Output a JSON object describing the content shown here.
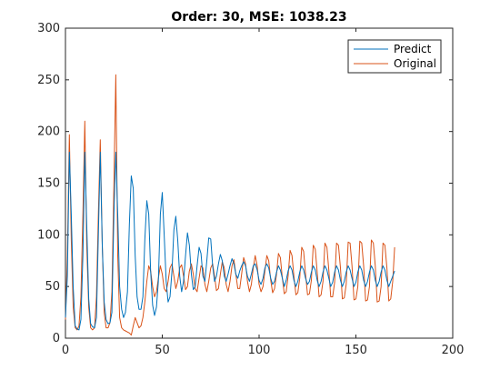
{
  "chart_data": {
    "type": "line",
    "title": "Order: 30, MSE: 1038.23",
    "xlabel": "",
    "ylabel": "",
    "xlim": [
      0,
      200
    ],
    "ylim": [
      0,
      300
    ],
    "xticks": [
      0,
      50,
      100,
      150,
      200
    ],
    "yticks": [
      0,
      50,
      100,
      150,
      200,
      250,
      300
    ],
    "grid": false,
    "legend_position": "top-right",
    "series": [
      {
        "name": "Predict",
        "color": "#0072BD",
        "x": [
          0,
          1,
          2,
          3,
          4,
          5,
          6,
          7,
          8,
          9,
          10,
          11,
          12,
          13,
          14,
          15,
          16,
          17,
          18,
          19,
          20,
          21,
          22,
          23,
          24,
          25,
          26,
          27,
          28,
          29,
          30,
          31,
          32,
          33,
          34,
          35,
          36,
          37,
          38,
          39,
          40,
          41,
          42,
          43,
          44,
          45,
          46,
          47,
          48,
          49,
          50,
          51,
          52,
          53,
          54,
          55,
          56,
          57,
          58,
          59,
          60,
          61,
          62,
          63,
          64,
          65,
          66,
          67,
          68,
          69,
          70,
          71,
          72,
          73,
          74,
          75,
          76,
          77,
          78,
          79,
          80,
          81,
          82,
          83,
          84,
          85,
          86,
          87,
          88,
          89,
          90,
          91,
          92,
          93,
          94,
          95,
          96,
          97,
          98,
          99,
          100,
          101,
          102,
          103,
          104,
          105,
          106,
          107,
          108,
          109,
          110,
          111,
          112,
          113,
          114,
          115,
          116,
          117,
          118,
          119,
          120,
          121,
          122,
          123,
          124,
          125,
          126,
          127,
          128,
          129,
          130,
          131,
          132,
          133,
          134,
          135,
          136,
          137,
          138,
          139,
          140,
          141,
          142,
          143,
          144,
          145,
          146,
          147,
          148,
          149,
          150,
          151,
          152,
          153,
          154,
          155,
          156,
          157,
          158,
          159,
          160,
          161,
          162,
          163,
          164,
          165,
          166,
          167,
          168,
          169,
          170
        ],
        "values": [
          20,
          60,
          180,
          120,
          50,
          12,
          9,
          8,
          18,
          80,
          180,
          110,
          38,
          14,
          11,
          10,
          20,
          100,
          180,
          90,
          35,
          18,
          14,
          15,
          25,
          120,
          180,
          120,
          50,
          28,
          20,
          25,
          45,
          110,
          157,
          145,
          80,
          40,
          28,
          28,
          40,
          95,
          133,
          120,
          65,
          32,
          22,
          30,
          55,
          120,
          141,
          100,
          55,
          35,
          40,
          65,
          105,
          118,
          95,
          60,
          45,
          55,
          80,
          102,
          90,
          62,
          47,
          50,
          70,
          88,
          82,
          60,
          55,
          75,
          97,
          96,
          70,
          55,
          60,
          72,
          81,
          75,
          60,
          55,
          62,
          70,
          77,
          72,
          62,
          58,
          65,
          70,
          74,
          70,
          60,
          55,
          62,
          70,
          72,
          66,
          56,
          52,
          58,
          68,
          72,
          68,
          58,
          52,
          55,
          64,
          70,
          66,
          58,
          50,
          56,
          65,
          70,
          66,
          56,
          50,
          55,
          64,
          70,
          66,
          58,
          52,
          55,
          64,
          70,
          66,
          56,
          50,
          55,
          64,
          70,
          66,
          58,
          50,
          54,
          64,
          70,
          66,
          56,
          50,
          55,
          64,
          70,
          66,
          58,
          50,
          54,
          64,
          70,
          66,
          56,
          50,
          55,
          64,
          70,
          66,
          56,
          50,
          55,
          64,
          70,
          66,
          56,
          50,
          55,
          60,
          65
        ]
      },
      {
        "name": "Original",
        "color": "#D95319",
        "x": [
          0,
          1,
          2,
          3,
          4,
          5,
          6,
          7,
          8,
          9,
          10,
          11,
          12,
          13,
          14,
          15,
          16,
          17,
          18,
          19,
          20,
          21,
          22,
          23,
          24,
          25,
          26,
          27,
          28,
          29,
          30,
          31,
          32,
          33,
          34,
          35,
          36,
          37,
          38,
          39,
          40,
          41,
          42,
          43,
          44,
          45,
          46,
          47,
          48,
          49,
          50,
          51,
          52,
          53,
          54,
          55,
          56,
          57,
          58,
          59,
          60,
          61,
          62,
          63,
          64,
          65,
          66,
          67,
          68,
          69,
          70,
          71,
          72,
          73,
          74,
          75,
          76,
          77,
          78,
          79,
          80,
          81,
          82,
          83,
          84,
          85,
          86,
          87,
          88,
          89,
          90,
          91,
          92,
          93,
          94,
          95,
          96,
          97,
          98,
          99,
          100,
          101,
          102,
          103,
          104,
          105,
          106,
          107,
          108,
          109,
          110,
          111,
          112,
          113,
          114,
          115,
          116,
          117,
          118,
          119,
          120,
          121,
          122,
          123,
          124,
          125,
          126,
          127,
          128,
          129,
          130,
          131,
          132,
          133,
          134,
          135,
          136,
          137,
          138,
          139,
          140,
          141,
          142,
          143,
          144,
          145,
          146,
          147,
          148,
          149,
          150,
          151,
          152,
          153,
          154,
          155,
          156,
          157,
          158,
          159,
          160,
          161,
          162,
          163,
          164,
          165,
          166,
          167,
          168,
          169,
          170
        ],
        "values": [
          18,
          80,
          197,
          95,
          30,
          10,
          8,
          12,
          40,
          120,
          210,
          90,
          30,
          10,
          8,
          10,
          40,
          120,
          192,
          90,
          25,
          10,
          10,
          15,
          45,
          150,
          255,
          80,
          20,
          10,
          8,
          7,
          6,
          5,
          3,
          12,
          20,
          15,
          10,
          12,
          20,
          35,
          55,
          70,
          65,
          50,
          40,
          45,
          58,
          70,
          62,
          48,
          45,
          55,
          68,
          72,
          60,
          48,
          55,
          68,
          71,
          60,
          47,
          50,
          65,
          72,
          62,
          48,
          45,
          58,
          70,
          68,
          52,
          45,
          55,
          68,
          72,
          60,
          46,
          48,
          62,
          74,
          68,
          52,
          45,
          55,
          70,
          76,
          62,
          48,
          48,
          62,
          78,
          72,
          55,
          45,
          52,
          68,
          80,
          70,
          52,
          45,
          50,
          65,
          80,
          75,
          56,
          44,
          48,
          62,
          82,
          78,
          58,
          43,
          45,
          60,
          85,
          80,
          60,
          42,
          44,
          58,
          88,
          84,
          62,
          42,
          43,
          56,
          90,
          86,
          64,
          40,
          42,
          55,
          92,
          88,
          66,
          40,
          40,
          54,
          92,
          90,
          68,
          38,
          39,
          52,
          93,
          92,
          70,
          37,
          38,
          50,
          94,
          92,
          70,
          36,
          37,
          50,
          95,
          92,
          70,
          35,
          36,
          50,
          92,
          90,
          68,
          36,
          38,
          55,
          88
        ]
      }
    ]
  }
}
